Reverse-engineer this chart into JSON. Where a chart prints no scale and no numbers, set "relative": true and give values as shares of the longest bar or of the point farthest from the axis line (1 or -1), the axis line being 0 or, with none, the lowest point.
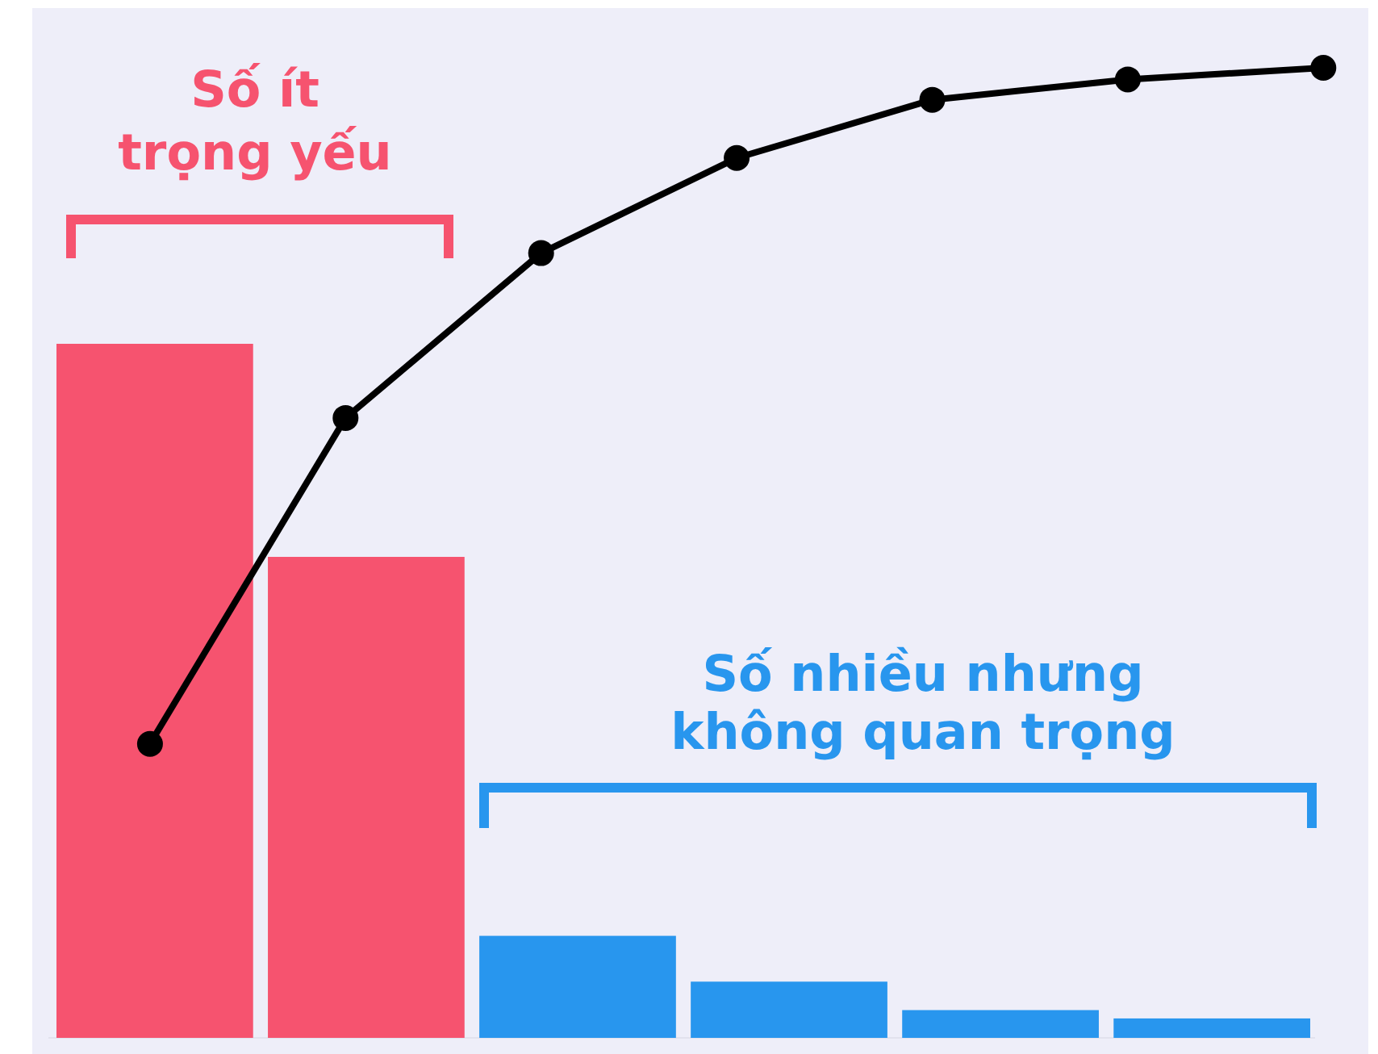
{
  "chart_data": [
    {
      "type": "bar",
      "relative": true,
      "categories": [
        null,
        null,
        null,
        null,
        null,
        null
      ],
      "annotations": [
        "Số ít trọng yếu",
        "Số nhiều nhưng không quan trọng"
      ],
      "values": [
        1.0,
        0.693,
        0.147,
        0.081,
        0.04,
        0.028
      ],
      "colors": [
        "#f6536f",
        "#f6536f",
        "#2896ee",
        "#2896ee",
        "#2896ee",
        "#2896ee"
      ]
    },
    {
      "type": "line",
      "relative": true,
      "categories": [
        null,
        null,
        null,
        null,
        null,
        null,
        null
      ],
      "marker": "circle",
      "series": [
        {
          "color": "#000000",
          "values": [
            0.303,
            0.639,
            0.809,
            0.907,
            0.967,
            0.988,
            1.0
          ]
        }
      ]
    }
  ]
}
